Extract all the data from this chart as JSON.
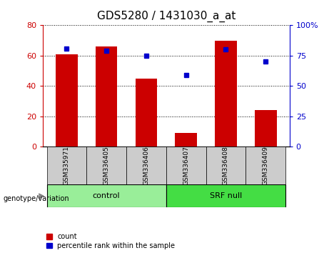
{
  "title": "GDS5280 / 1431030_a_at",
  "categories": [
    "GSM335971",
    "GSM336405",
    "GSM336406",
    "GSM336407",
    "GSM336408",
    "GSM336409"
  ],
  "bar_values": [
    61,
    66,
    45,
    9,
    70,
    24
  ],
  "dot_values": [
    81,
    79,
    75,
    59,
    80,
    70
  ],
  "bar_color": "#cc0000",
  "dot_color": "#0000cc",
  "ylim_left": [
    0,
    80
  ],
  "ylim_right": [
    0,
    100
  ],
  "yticks_left": [
    0,
    20,
    40,
    60,
    80
  ],
  "yticks_right": [
    0,
    25,
    50,
    75,
    100
  ],
  "yticklabels_right": [
    "0",
    "25",
    "50",
    "75",
    "100%"
  ],
  "groups": [
    {
      "label": "control",
      "span": [
        0,
        3
      ],
      "color": "#99ee99"
    },
    {
      "label": "SRF null",
      "span": [
        3,
        6
      ],
      "color": "#44dd44"
    }
  ],
  "group_label": "genotype/variation",
  "legend_count_label": "count",
  "legend_pct_label": "percentile rank within the sample",
  "title_fontsize": 11,
  "tick_fontsize": 8,
  "bar_width": 0.55,
  "xtick_bg_color": "#cccccc",
  "spine_color": "#000000"
}
